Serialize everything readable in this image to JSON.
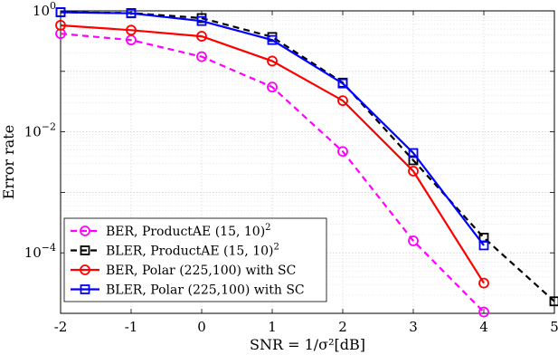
{
  "chart_data": {
    "type": "line",
    "xlabel": "SNR = 1/σ²[dB]",
    "ylabel": "Error rate",
    "xlim": [
      -2,
      5
    ],
    "ylim": [
      1e-05,
      1
    ],
    "y_scale": "log",
    "grid": true,
    "legend_position": "bottom-left",
    "x_ticks": [
      "-2",
      "-1",
      "0",
      "1",
      "2",
      "3",
      "4",
      "5"
    ],
    "y_ticks": [
      {
        "value": 1,
        "base": "10",
        "exp": "0"
      },
      {
        "value": 0.01,
        "base": "10",
        "exp": "−2"
      },
      {
        "value": 0.0001,
        "base": "10",
        "exp": "−4"
      }
    ],
    "series": [
      {
        "name": "BER, ProductAE (15, 10)",
        "name_superscript": "2",
        "color": "#ff00ff",
        "dash": true,
        "marker": "circle",
        "x": [
          -2,
          -1,
          0,
          1,
          2,
          3,
          4
        ],
        "y": [
          0.42,
          0.33,
          0.175,
          0.055,
          0.00474,
          0.000158,
          1.05e-05
        ]
      },
      {
        "name": "BLER, ProductAE (15, 10)",
        "name_superscript": "2",
        "color": "#000000",
        "dash": true,
        "marker": "square",
        "x": [
          -2,
          -1,
          0,
          1,
          2,
          3,
          4,
          5
        ],
        "y": [
          0.95,
          0.92,
          0.76,
          0.37,
          0.065,
          0.00339,
          0.000178,
          1.58e-05
        ]
      },
      {
        "name": "BER, Polar (225,100) with SC",
        "color": "#ff0000",
        "dash": false,
        "marker": "circle",
        "x": [
          -2,
          -1,
          0,
          1,
          2,
          3,
          4
        ],
        "y": [
          0.577,
          0.48,
          0.38,
          0.148,
          0.0328,
          0.00224,
          3.16e-05
        ]
      },
      {
        "name": "BLER, Polar (225,100) with SC",
        "color": "#0000ff",
        "dash": false,
        "marker": "square",
        "x": [
          -2,
          -1,
          0,
          1,
          2,
          3,
          4
        ],
        "y": [
          0.95,
          0.91,
          0.68,
          0.33,
          0.0631,
          0.00446,
          0.000133
        ]
      }
    ]
  }
}
